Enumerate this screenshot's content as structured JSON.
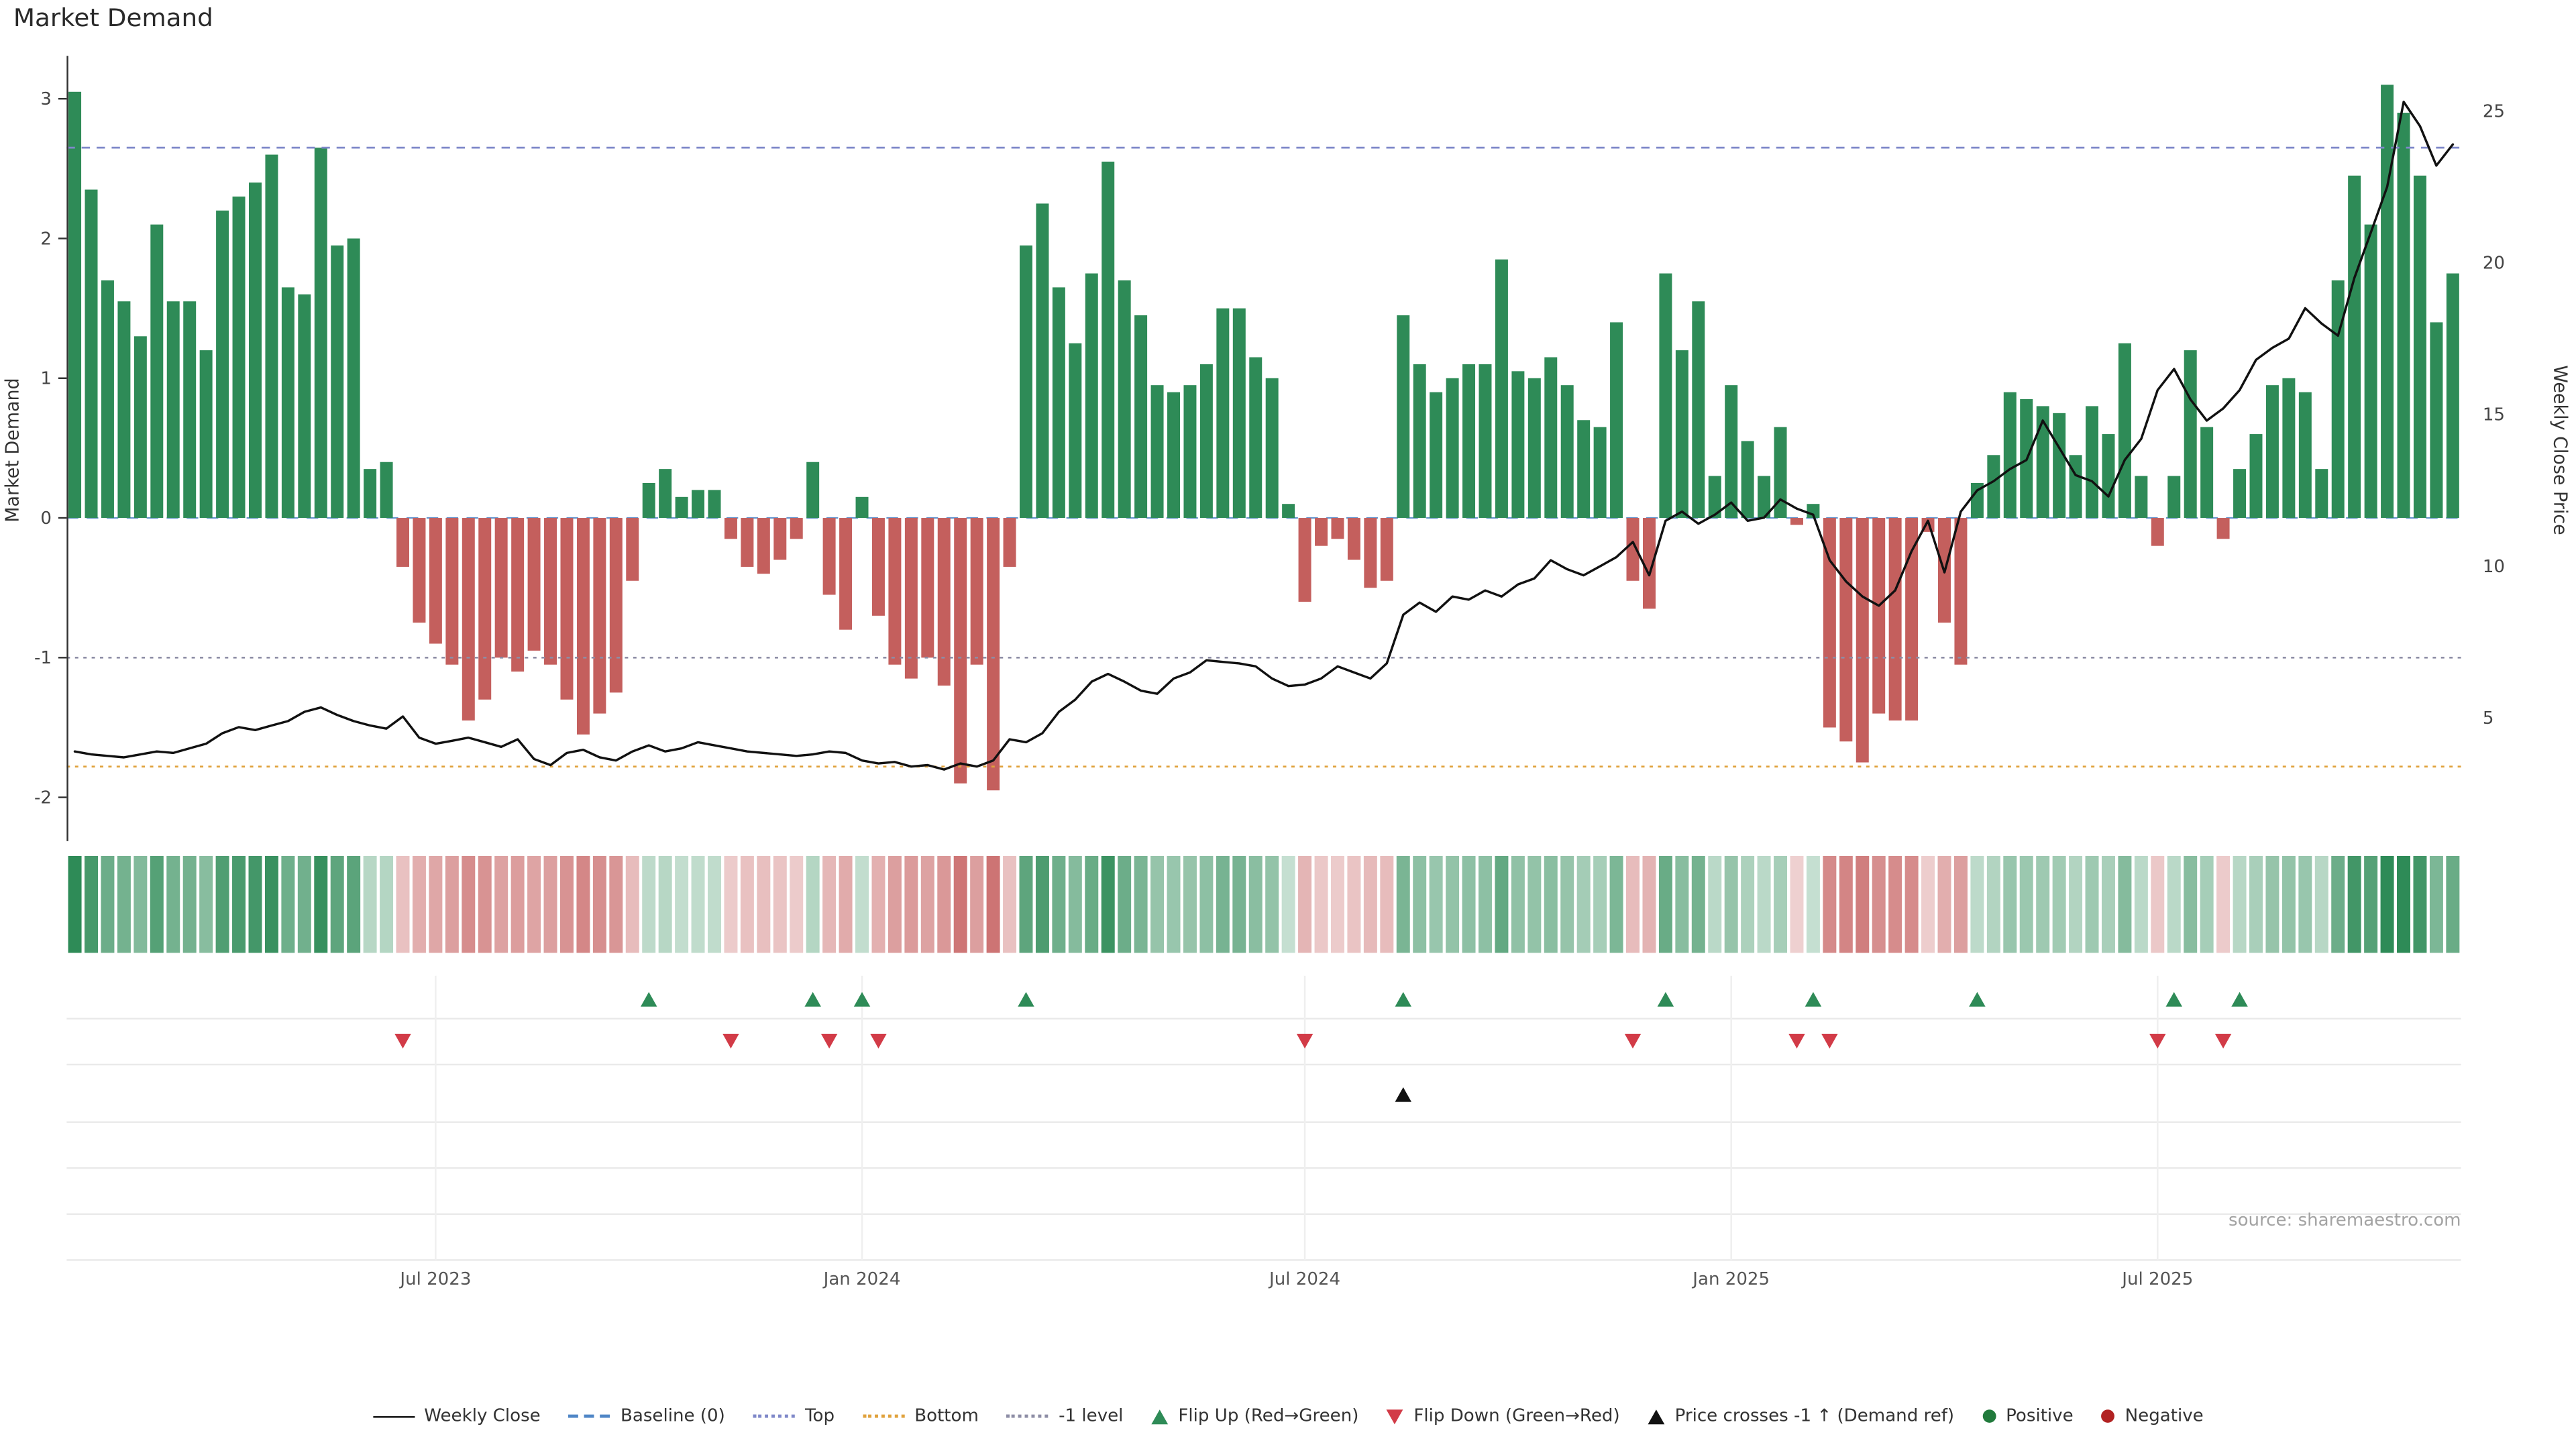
{
  "page": {
    "title": "Market Demand",
    "source": "source: sharemaestro.com"
  },
  "chart_data": {
    "type": "combo-bar-line",
    "title": "Market Demand",
    "left_axis": {
      "label": "Market Demand",
      "ticks": [
        -2,
        -1,
        0,
        1,
        2,
        3
      ],
      "range": [
        -2.29,
        3.26
      ]
    },
    "right_axis": {
      "label": "Weekly Close Price",
      "ticks": [
        5,
        10,
        15,
        20,
        25
      ],
      "range": [
        1.05,
        26.6
      ]
    },
    "x_axis": {
      "tick_labels": [
        "Jul 2023",
        "Jan 2024",
        "Jul 2024",
        "Jan 2025",
        "Jul 2025"
      ],
      "tick_weeks": [
        22,
        48,
        75,
        101,
        127
      ]
    },
    "reference_lines": {
      "baseline": 0,
      "top": 2.65,
      "bottom": -1.78,
      "minus1": -1
    },
    "series": {
      "demand": [
        3.05,
        2.35,
        1.7,
        1.55,
        1.3,
        2.1,
        1.55,
        1.55,
        1.2,
        2.2,
        2.3,
        2.4,
        2.6,
        1.65,
        1.6,
        2.65,
        1.95,
        2.0,
        0.35,
        0.4,
        -0.35,
        -0.75,
        -0.9,
        -1.05,
        -1.45,
        -1.3,
        -1.0,
        -1.1,
        -0.95,
        -1.05,
        -1.3,
        -1.55,
        -1.4,
        -1.25,
        -0.45,
        0.25,
        0.35,
        0.15,
        0.2,
        0.2,
        -0.15,
        -0.35,
        -0.4,
        -0.3,
        -0.15,
        0.4,
        -0.55,
        -0.8,
        0.15,
        -0.7,
        -1.05,
        -1.15,
        -1.0,
        -1.2,
        -1.9,
        -1.05,
        -1.95,
        -0.35,
        1.95,
        2.25,
        1.65,
        1.25,
        1.75,
        2.55,
        1.7,
        1.45,
        0.95,
        0.9,
        0.95,
        1.1,
        1.5,
        1.5,
        1.15,
        1.0,
        0.1,
        -0.6,
        -0.2,
        -0.15,
        -0.3,
        -0.5,
        -0.45,
        1.45,
        1.1,
        0.9,
        1.0,
        1.1,
        1.1,
        1.85,
        1.05,
        1.0,
        1.15,
        0.95,
        0.7,
        0.65,
        1.4,
        -0.45,
        -0.65,
        1.75,
        1.2,
        1.55,
        0.3,
        0.95,
        0.55,
        0.3,
        0.65,
        -0.05,
        0.1,
        -1.5,
        -1.6,
        -1.75,
        -1.4,
        -1.45,
        -1.45,
        -0.1,
        -0.75,
        -1.05,
        0.25,
        0.45,
        0.9,
        0.85,
        0.8,
        0.75,
        0.45,
        0.8,
        0.6,
        1.25,
        0.3,
        -0.2,
        0.3,
        1.2,
        0.65,
        -0.15,
        0.35,
        0.6,
        0.95,
        1.0,
        0.9,
        0.35,
        1.7,
        2.45,
        2.1,
        3.1,
        2.9,
        2.45,
        1.4,
        1.75
      ],
      "price": [
        3.9,
        3.8,
        3.75,
        3.7,
        3.8,
        3.9,
        3.85,
        4.0,
        4.15,
        4.5,
        4.7,
        4.6,
        4.75,
        4.9,
        5.2,
        5.35,
        5.1,
        4.9,
        4.75,
        4.65,
        5.05,
        4.35,
        4.15,
        4.25,
        4.35,
        4.2,
        4.05,
        4.3,
        3.65,
        3.45,
        3.85,
        3.95,
        3.7,
        3.6,
        3.9,
        4.1,
        3.9,
        4.0,
        4.2,
        4.1,
        4.0,
        3.9,
        3.85,
        3.8,
        3.75,
        3.8,
        3.9,
        3.85,
        3.6,
        3.5,
        3.55,
        3.4,
        3.45,
        3.3,
        3.5,
        3.4,
        3.6,
        4.3,
        4.2,
        4.5,
        5.2,
        5.6,
        6.2,
        6.45,
        6.2,
        5.9,
        5.8,
        6.3,
        6.5,
        6.9,
        6.85,
        6.8,
        6.7,
        6.3,
        6.05,
        6.1,
        6.3,
        6.7,
        6.5,
        6.3,
        6.8,
        8.4,
        8.8,
        8.5,
        9.0,
        8.9,
        9.2,
        9.0,
        9.4,
        9.6,
        10.2,
        9.9,
        9.7,
        10.0,
        10.3,
        10.8,
        9.7,
        11.5,
        11.8,
        11.4,
        11.7,
        12.1,
        11.5,
        11.6,
        12.2,
        11.9,
        11.7,
        10.2,
        9.5,
        9.0,
        8.7,
        9.2,
        10.5,
        11.5,
        9.8,
        11.8,
        12.5,
        12.8,
        13.2,
        13.5,
        14.8,
        13.9,
        13.0,
        12.8,
        12.3,
        13.5,
        14.2,
        15.8,
        16.5,
        15.5,
        14.8,
        15.2,
        15.8,
        16.8,
        17.2,
        17.5,
        18.5,
        18.0,
        17.6,
        19.5,
        21.0,
        22.5,
        25.3,
        24.5,
        23.2,
        23.9
      ]
    },
    "markers": {
      "flip_up_weeks": [
        35,
        45,
        48,
        58,
        81,
        97,
        106,
        116,
        128,
        132
      ],
      "flip_down_weeks": [
        20,
        40,
        46,
        49,
        75,
        95,
        105,
        107,
        127,
        131
      ],
      "price_cross_up_weeks": [
        81
      ]
    },
    "colors": {
      "positive": "#2e8b57",
      "negative": "#c45f5d",
      "price": "#111111",
      "baseline": "#4f86c6",
      "top": "#7f88c9",
      "bottom": "#e0a23c",
      "minus1": "#8d8da5",
      "flip_up": "#2e8b57",
      "flip_down": "#d23b47",
      "price_cross": "#111111",
      "positive_dot": "#217a3c",
      "negative_dot": "#b22222"
    },
    "legend": [
      {
        "type": "line",
        "dash": "solid",
        "color": "#111111",
        "label": "Weekly Close"
      },
      {
        "type": "line",
        "dash": "dashed",
        "color": "#4f86c6",
        "label": "Baseline (0)"
      },
      {
        "type": "line",
        "dash": "dotted",
        "color": "#7f88c9",
        "label": "Top"
      },
      {
        "type": "line",
        "dash": "dotted",
        "color": "#e0a23c",
        "label": "Bottom"
      },
      {
        "type": "line",
        "dash": "dotted",
        "color": "#8d8da5",
        "label": "-1 level"
      },
      {
        "type": "triangle-up",
        "color": "#2e8b57",
        "label": "Flip Up (Red→Green)"
      },
      {
        "type": "triangle-down",
        "color": "#d23b47",
        "label": "Flip Down (Green→Red)"
      },
      {
        "type": "triangle-up",
        "color": "#111111",
        "label": "Price crosses -1 ↑ (Demand ref)"
      },
      {
        "type": "dot",
        "color": "#217a3c",
        "label": "Positive"
      },
      {
        "type": "dot",
        "color": "#b22222",
        "label": "Negative"
      }
    ]
  }
}
